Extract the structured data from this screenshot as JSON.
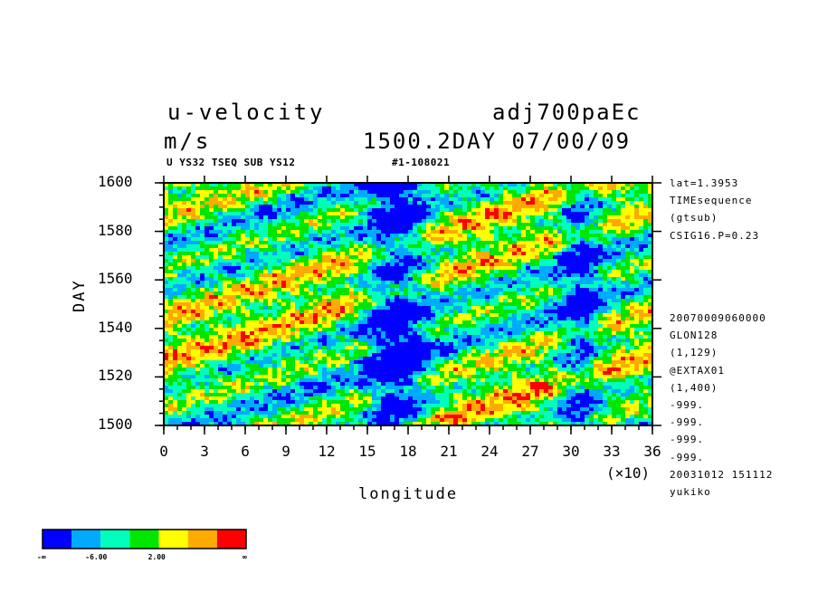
{
  "header": {
    "title_left": "u-velocity",
    "title_right": "adj700paEc",
    "units": "m/s",
    "time_label": "1500.2DAY 07/00/09",
    "sub_left": "U YS32 TSEQ SUB YS12",
    "sub_right": "#1-108021"
  },
  "side_info": {
    "top": [
      "lat=1.3953",
      "TIMEsequence",
      "(gtsub)",
      "CSIG16.P=0.23"
    ],
    "bottom": [
      "20070009060000",
      "GLON128",
      "(1,129)",
      "@EXTAX01",
      "(1,400)",
      "-999.",
      "-999.",
      "-999.",
      "-999.",
      "20031012 151112",
      "yukiko"
    ]
  },
  "colorbar": {
    "colors": [
      "#0000ff",
      "#00aaff",
      "#00ffbb",
      "#00e600",
      "#ffff00",
      "#ffaa00",
      "#ff0000"
    ],
    "labels": [
      "-∞",
      "-6.00",
      "2.00",
      "∞"
    ]
  },
  "chart_data": {
    "type": "heatmap",
    "title": "u-velocity",
    "units": "m/s",
    "xlabel": "longitude",
    "x_multiplier": "(×10)",
    "ylabel": "DAY",
    "xlim": [
      0,
      36
    ],
    "ylim": [
      1500,
      1600
    ],
    "x_ticks": [
      0,
      3,
      6,
      9,
      12,
      15,
      18,
      21,
      24,
      27,
      30,
      33,
      36
    ],
    "y_ticks": [
      1500,
      1520,
      1540,
      1560,
      1580,
      1600
    ],
    "color_levels": [
      "-∞",
      "-6.00",
      "2.00",
      "∞"
    ]
  }
}
